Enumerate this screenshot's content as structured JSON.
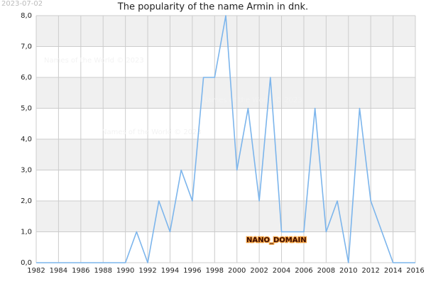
{
  "chart_data": {
    "type": "line",
    "title": "The popularity of the name Armin in dnk.",
    "date_stamp": "2023-07-02",
    "watermarks": [
      "Names of the World © 2023",
      "Names of the World © 2023",
      "Names of the World © 2023"
    ],
    "domain_label": "NANO_DOMAIN",
    "x": [
      1982,
      1983,
      1984,
      1985,
      1986,
      1987,
      1988,
      1989,
      1990,
      1991,
      1992,
      1993,
      1994,
      1995,
      1996,
      1997,
      1998,
      1999,
      2000,
      2001,
      2002,
      2003,
      2004,
      2005,
      2006,
      2007,
      2008,
      2009,
      2010,
      2011,
      2012,
      2013,
      2014,
      2015,
      2016
    ],
    "values": [
      0,
      0,
      0,
      0,
      0,
      0,
      0,
      0,
      0,
      1,
      0,
      2,
      1,
      3,
      2,
      6,
      6,
      8,
      3,
      5,
      2,
      6,
      1,
      1,
      1,
      5,
      1,
      2,
      0,
      5,
      2,
      1,
      0,
      0,
      0
    ],
    "color": "#7cb5ec",
    "xlim": [
      1982,
      2016
    ],
    "xticks": [
      1982,
      1984,
      1986,
      1988,
      1990,
      1992,
      1994,
      1996,
      1998,
      2000,
      2002,
      2004,
      2006,
      2008,
      2010,
      2012,
      2014,
      2016
    ],
    "ylim": [
      0,
      8
    ],
    "yticks": [
      {
        "value": 0,
        "label": "0,0"
      },
      {
        "value": 1,
        "label": "1,0"
      },
      {
        "value": 2,
        "label": "2,0"
      },
      {
        "value": 3,
        "label": "3,0"
      },
      {
        "value": 4,
        "label": "4,0"
      },
      {
        "value": 5,
        "label": "5,0"
      },
      {
        "value": 6,
        "label": "6,0"
      },
      {
        "value": 7,
        "label": "7,0"
      },
      {
        "value": 8,
        "label": "8,0"
      }
    ],
    "grid": true
  }
}
